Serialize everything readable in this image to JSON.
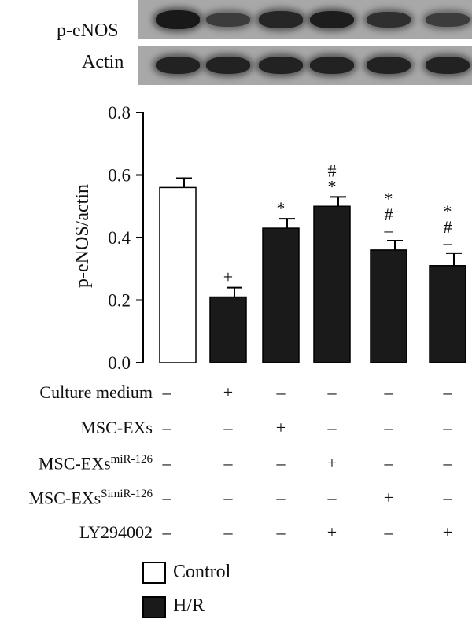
{
  "blot": {
    "rows": [
      {
        "label": "p-eNOS",
        "intensities": [
          0.95,
          0.55,
          0.8,
          0.9,
          0.7,
          0.55
        ]
      },
      {
        "label": "Actin",
        "intensities": [
          0.85,
          0.85,
          0.85,
          0.85,
          0.85,
          0.85
        ]
      }
    ]
  },
  "chart_data": {
    "type": "bar",
    "ylabel": "p-eNOS/actin",
    "ylim": [
      0,
      0.8
    ],
    "yticks": [
      "0.0",
      "0.2",
      "0.4",
      "0.6",
      "0.8"
    ],
    "values": [
      0.56,
      0.21,
      0.43,
      0.5,
      0.36,
      0.31
    ],
    "errors": [
      0.03,
      0.03,
      0.03,
      0.03,
      0.03,
      0.04
    ],
    "groups": [
      "Control",
      "H/R",
      "H/R",
      "H/R",
      "H/R",
      "H/R"
    ],
    "annotations": [
      [],
      [
        "+"
      ],
      [
        "*"
      ],
      [
        "#",
        "*"
      ],
      [
        "*",
        "#",
        "–"
      ],
      [
        "*",
        "#",
        "–"
      ]
    ]
  },
  "table": {
    "rows": [
      {
        "label": "Culture medium",
        "sup": "",
        "signs": [
          "–",
          "+",
          "–",
          "–",
          "–",
          "–"
        ]
      },
      {
        "label": "MSC-EXs",
        "sup": "",
        "signs": [
          "–",
          "–",
          "+",
          "–",
          "–",
          "–"
        ]
      },
      {
        "label": "MSC-EXs",
        "sup": "miR-126",
        "signs": [
          "–",
          "–",
          "–",
          "+",
          "–",
          "–"
        ]
      },
      {
        "label": "MSC-EXs",
        "sup": "SimiR-126",
        "signs": [
          "–",
          "–",
          "–",
          "–",
          "+",
          "–"
        ]
      },
      {
        "label": "LY294002",
        "sup": "",
        "signs": [
          "–",
          "–",
          "–",
          "+",
          "–",
          "+"
        ]
      }
    ]
  },
  "legend": {
    "items": [
      {
        "label": "Control",
        "color": "#ffffff"
      },
      {
        "label": "H/R",
        "color": "#1a1a1a"
      }
    ]
  },
  "colors": {
    "control": "#ffffff",
    "treated": "#1a1a1a",
    "axis": "#000000"
  }
}
